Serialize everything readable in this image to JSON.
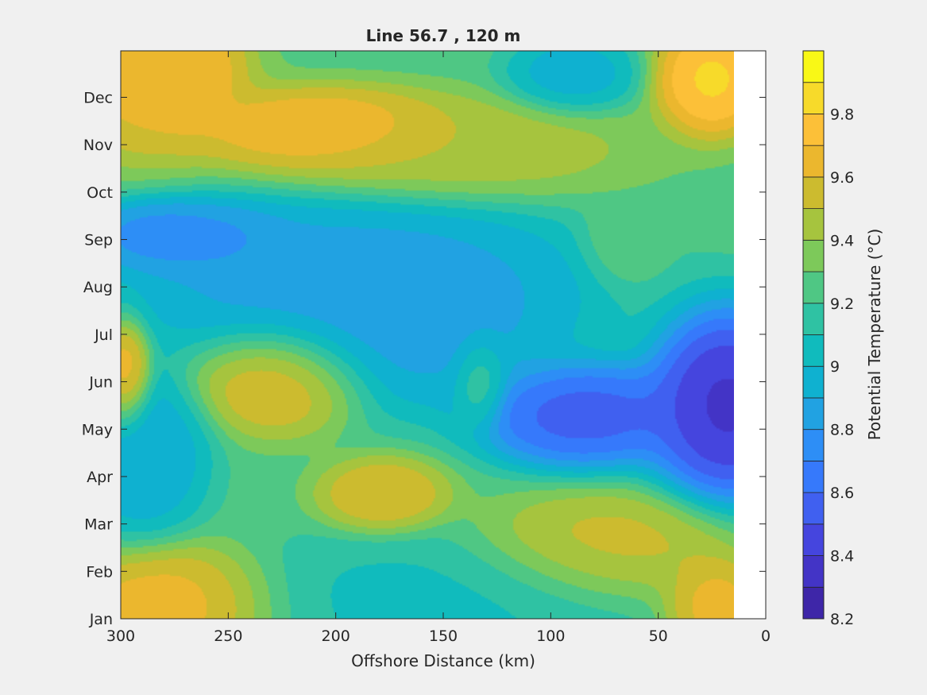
{
  "chart_data": {
    "type": "heatmap",
    "subtype": "filled-contour",
    "title": "Line 56.7 , 120 m",
    "xlabel": "Offshore Distance (km)",
    "ylabel": "",
    "x_direction": "reversed",
    "xlim": [
      0,
      300
    ],
    "x_ticks": [
      300,
      250,
      200,
      150,
      100,
      50,
      0
    ],
    "x_tick_labels": [
      "300",
      "250",
      "200",
      "150",
      "100",
      "50",
      "0"
    ],
    "y_tick_labels": [
      "Jan",
      "Feb",
      "Mar",
      "Apr",
      "May",
      "Jun",
      "Jul",
      "Aug",
      "Sep",
      "Oct",
      "Nov",
      "Dec"
    ],
    "data_x_range": [
      15,
      300
    ],
    "colorbar": {
      "label": "Potential Temperature (°C)",
      "limits": [
        8.2,
        10.0
      ],
      "ticks": [
        8.2,
        8.4,
        8.6,
        8.8,
        9,
        9.2,
        9.4,
        9.6,
        9.8
      ],
      "tick_labels": [
        "8.2",
        "8.4",
        "8.6",
        "8.8",
        "9",
        "9.2",
        "9.4",
        "9.6",
        "9.8"
      ],
      "level_step": 0.1,
      "colors": [
        "#3e26a8",
        "#4334c6",
        "#4545de",
        "#4060f0",
        "#3679fb",
        "#2d8ef6",
        "#21a2e2",
        "#0fb1d0",
        "#10bbbd",
        "#2fc2a3",
        "#4fc784",
        "#7dc95a",
        "#a6c43e",
        "#ccbb2f",
        "#ebb72e",
        "#fcc038",
        "#f7da2a",
        "#f9f816"
      ]
    },
    "hotspots": [
      {
        "x": 288,
        "month": 11.5,
        "value": 9.7,
        "sx": 22,
        "sy": 0.9
      },
      {
        "x": 270,
        "month": 11.6,
        "value": 9.75,
        "sx": 12,
        "sy": 0.6
      },
      {
        "x": 205,
        "month": 10.3,
        "value": 9.8,
        "sx": 30,
        "sy": 0.45
      },
      {
        "x": 150,
        "month": 9.9,
        "value": 9.5,
        "sx": 45,
        "sy": 0.55
      },
      {
        "x": 90,
        "month": 11.5,
        "value": 8.9,
        "sx": 15,
        "sy": 0.4
      },
      {
        "x": 25,
        "month": 11.4,
        "value": 9.9,
        "sx": 13,
        "sy": 0.6
      },
      {
        "x": 285,
        "month": 8.1,
        "value": 8.7,
        "sx": 16,
        "sy": 0.35
      },
      {
        "x": 260,
        "month": 8.0,
        "value": 8.7,
        "sx": 20,
        "sy": 0.4
      },
      {
        "x": 195,
        "month": 7.2,
        "value": 8.8,
        "sx": 55,
        "sy": 0.9
      },
      {
        "x": 175,
        "month": 6.2,
        "value": 8.8,
        "sx": 40,
        "sy": 0.9
      },
      {
        "x": 65,
        "month": 8.0,
        "value": 9.3,
        "sx": 10,
        "sy": 0.5
      },
      {
        "x": 298,
        "month": 5.1,
        "value": 9.8,
        "sx": 6,
        "sy": 0.6
      },
      {
        "x": 225,
        "month": 5.1,
        "value": 9.75,
        "sx": 20,
        "sy": 0.6
      },
      {
        "x": 133,
        "month": 5.0,
        "value": 9.25,
        "sx": 6,
        "sy": 0.5
      },
      {
        "x": 85,
        "month": 4.3,
        "value": 8.45,
        "sx": 25,
        "sy": 0.55
      },
      {
        "x": 18,
        "month": 4.5,
        "value": 8.25,
        "sx": 18,
        "sy": 1.0
      },
      {
        "x": 290,
        "month": 3.5,
        "value": 8.85,
        "sx": 15,
        "sy": 0.9
      },
      {
        "x": 178,
        "month": 2.6,
        "value": 9.65,
        "sx": 15,
        "sy": 0.4
      },
      {
        "x": 75,
        "month": 1.4,
        "value": 9.6,
        "sx": 30,
        "sy": 0.6
      },
      {
        "x": 150,
        "month": 0.4,
        "value": 9.05,
        "sx": 55,
        "sy": 0.7
      },
      {
        "x": 275,
        "month": 0.3,
        "value": 9.75,
        "sx": 25,
        "sy": 0.6
      },
      {
        "x": 25,
        "month": 0.3,
        "value": 9.75,
        "sx": 12,
        "sy": 0.5
      }
    ],
    "background_level": 9.25
  }
}
